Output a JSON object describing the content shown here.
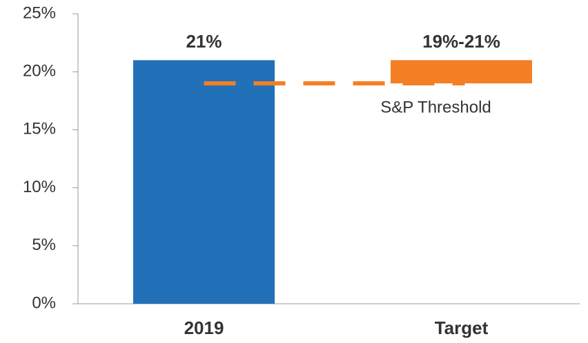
{
  "chart_data": {
    "type": "floating-bar",
    "categories": [
      "2019",
      "Target"
    ],
    "bases": [
      0,
      19
    ],
    "values": [
      21,
      21
    ],
    "value_labels": [
      "21%",
      "19%-21%"
    ],
    "colors": [
      "#2271b8",
      "#f47f24"
    ],
    "threshold": {
      "value": 19,
      "label": "S&P Threshold",
      "color": "#f47f24"
    },
    "ylim": [
      0,
      25
    ],
    "yticks": [
      {
        "value": 0,
        "label": "0%"
      },
      {
        "value": 5,
        "label": "5%"
      },
      {
        "value": 10,
        "label": "10%"
      },
      {
        "value": 15,
        "label": "15%"
      },
      {
        "value": 20,
        "label": "20%"
      },
      {
        "value": 25,
        "label": "25%"
      }
    ],
    "grid": false
  }
}
